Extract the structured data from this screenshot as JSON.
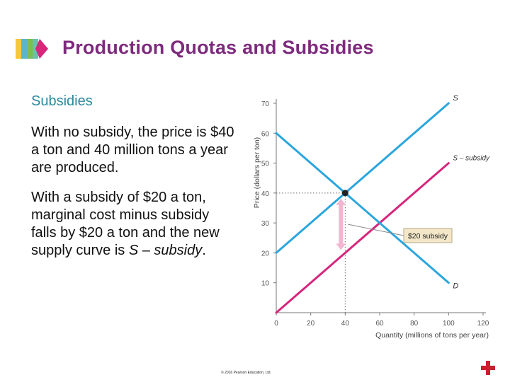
{
  "slide": {
    "title": "Production Quotas and Subsidies",
    "subheading": "Subsidies",
    "paragraph1": "With no subsidy, the price is $40 a ton and 40 million tons a year are produced.",
    "paragraph2_prefix": "With a subsidy of $20 a ton, marginal cost minus subsidy falls by $20 a ton and the new supply curve is ",
    "paragraph2_curve_name": "S – subsidy",
    "paragraph2_suffix": ".",
    "copyright": "© 2016 Pearson Education, Ltd.",
    "colors": {
      "title": "#7d2a7d",
      "subheading": "#2a8a9c",
      "logo_colors": [
        "#f7c640",
        "#59b6c9",
        "#7bbf4a",
        "#d9257a"
      ]
    },
    "icons": [
      "logo-icon",
      "navigation-icon"
    ]
  },
  "chart_data": {
    "type": "line",
    "xlabel": "Quantity (millions of tons per year)",
    "ylabel": "Price (dollars per ton)",
    "xlim": [
      0,
      120
    ],
    "ylim": [
      0,
      70
    ],
    "x_ticks": [
      0,
      20,
      40,
      60,
      80,
      100,
      120
    ],
    "y_ticks": [
      10,
      20,
      30,
      40,
      50,
      60,
      70
    ],
    "grid": false,
    "series": [
      {
        "name": "S",
        "color": "#2aa6dc",
        "points": [
          [
            0,
            20
          ],
          [
            100,
            70
          ]
        ]
      },
      {
        "name": "S – subsidy",
        "color": "#d6267d",
        "points": [
          [
            0,
            0
          ],
          [
            100,
            50
          ]
        ]
      },
      {
        "name": "D",
        "color": "#2aa6dc",
        "points": [
          [
            0,
            60
          ],
          [
            100,
            10
          ]
        ]
      }
    ],
    "equilibrium": {
      "x": 40,
      "y": 40
    },
    "annotations": [
      {
        "text": "$20 subsidy",
        "x": 40,
        "y_from": 20,
        "y_to": 40
      }
    ]
  }
}
